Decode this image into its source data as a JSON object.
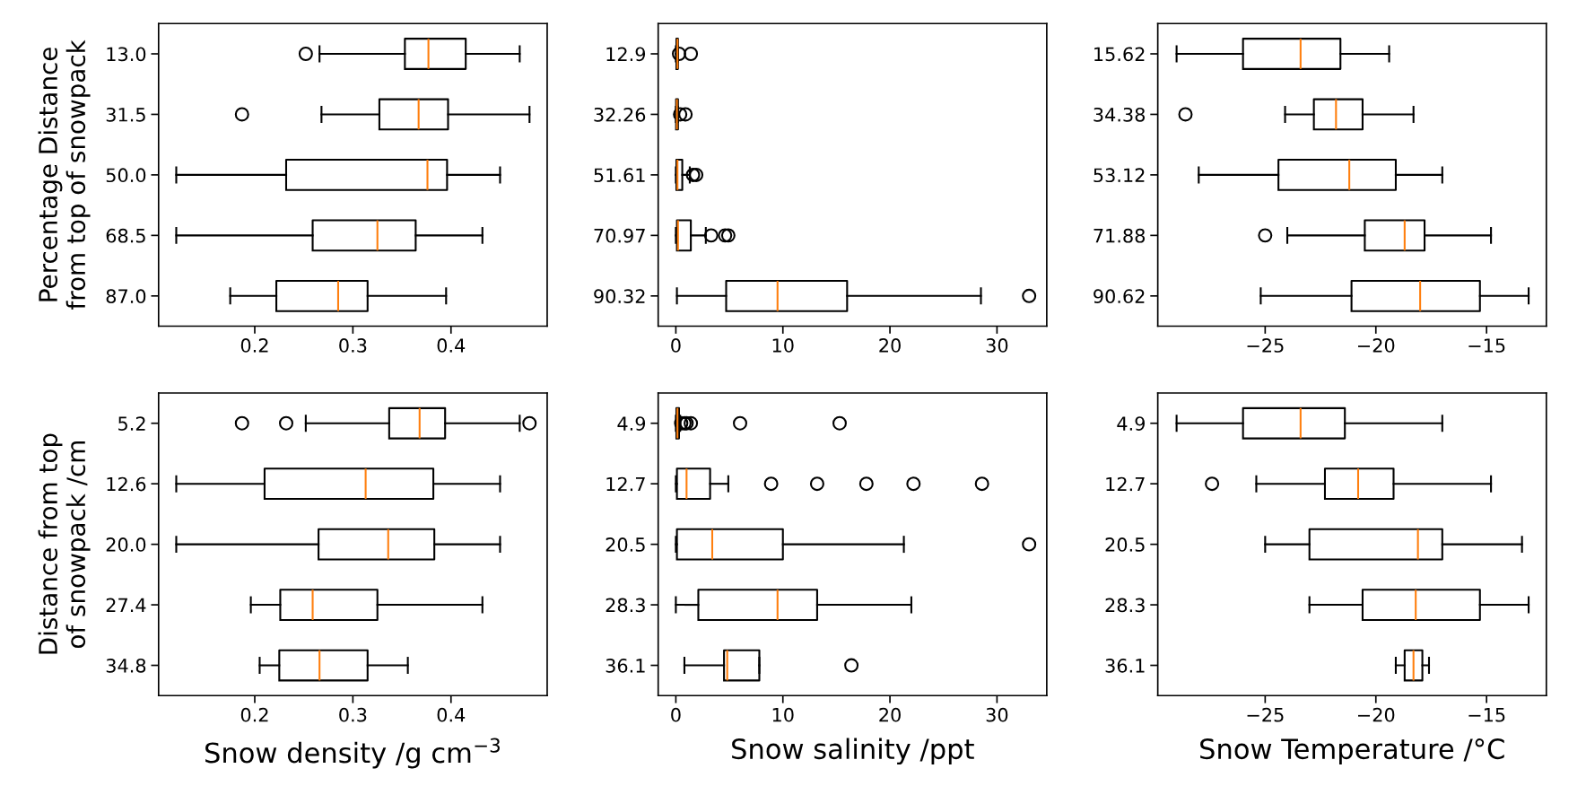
{
  "chart_data": [
    {
      "type": "box",
      "orientation": "horizontal",
      "ylabel": "Percentage Distance\nfrom top of snowpack",
      "categories": [
        "13.0",
        "31.5",
        "50.0",
        "68.5",
        "87.0"
      ],
      "xlim": [
        0.102,
        0.498
      ],
      "xticks": [
        0.2,
        0.3,
        0.4
      ],
      "boxes": [
        {
          "low": 0.266,
          "q1": 0.353,
          "median": 0.377,
          "q3": 0.415,
          "high": 0.47,
          "outliers": [
            0.252
          ]
        },
        {
          "low": 0.268,
          "q1": 0.327,
          "median": 0.367,
          "q3": 0.397,
          "high": 0.48,
          "outliers": [
            0.187
          ]
        },
        {
          "low": 0.12,
          "q1": 0.232,
          "median": 0.376,
          "q3": 0.396,
          "high": 0.45
        },
        {
          "low": 0.12,
          "q1": 0.259,
          "median": 0.325,
          "q3": 0.364,
          "high": 0.432
        },
        {
          "low": 0.175,
          "q1": 0.222,
          "median": 0.285,
          "q3": 0.315,
          "high": 0.395
        }
      ]
    },
    {
      "type": "box",
      "orientation": "horizontal",
      "categories": [
        "12.9",
        "32.26",
        "51.61",
        "70.97",
        "90.32"
      ],
      "xlim": [
        -1.65,
        34.65
      ],
      "xticks": [
        0,
        10,
        20,
        30
      ],
      "boxes": [
        {
          "low": 0.0,
          "q1": 0.05,
          "median": 0.15,
          "q3": 0.2,
          "high": 0.2,
          "outliers": [
            0.3,
            1.4
          ]
        },
        {
          "low": 0.0,
          "q1": 0.02,
          "median": 0.1,
          "q3": 0.2,
          "high": 0.2,
          "outliers": [
            0.4,
            0.9
          ]
        },
        {
          "low": 0.0,
          "q1": 0.05,
          "median": 0.15,
          "q3": 0.6,
          "high": 1.3,
          "outliers": [
            1.6,
            1.9
          ]
        },
        {
          "low": 0.0,
          "q1": 0.1,
          "median": 0.2,
          "q3": 1.4,
          "high": 2.8,
          "outliers": [
            3.3,
            4.6,
            4.9
          ]
        },
        {
          "low": 0.1,
          "q1": 4.7,
          "median": 9.5,
          "q3": 16.0,
          "high": 28.5,
          "outliers": [
            33.0
          ]
        }
      ]
    },
    {
      "type": "box",
      "orientation": "horizontal",
      "categories": [
        "15.62",
        "34.38",
        "53.12",
        "71.88",
        "90.62"
      ],
      "xlim": [
        -29.85,
        -12.3
      ],
      "xticks": [
        {
          "value": -25,
          "label": "−25"
        },
        {
          "value": -20,
          "label": "−20"
        },
        {
          "value": -15,
          "label": "−15"
        }
      ],
      "boxes": [
        {
          "low": -29.0,
          "q1": -26.0,
          "median": -23.4,
          "q3": -21.6,
          "high": -19.4
        },
        {
          "low": -24.1,
          "q1": -22.8,
          "median": -21.8,
          "q3": -20.6,
          "high": -18.3,
          "outliers": [
            -28.6
          ]
        },
        {
          "low": -28.0,
          "q1": -24.4,
          "median": -21.2,
          "q3": -19.1,
          "high": -17.0
        },
        {
          "low": -24.0,
          "q1": -20.5,
          "median": -18.7,
          "q3": -17.8,
          "high": -14.8,
          "outliers": [
            -25.0
          ]
        },
        {
          "low": -25.2,
          "q1": -21.1,
          "median": -18.0,
          "q3": -15.3,
          "high": -13.1
        }
      ]
    },
    {
      "type": "box",
      "orientation": "horizontal",
      "ylabel": "Distance from top\nof snowpack /cm",
      "xlabel": "Snow density /g cm$^{−3}$",
      "categories": [
        "5.2",
        "12.6",
        "20.0",
        "27.4",
        "34.8"
      ],
      "xlim": [
        0.102,
        0.498
      ],
      "xticks": [
        0.2,
        0.3,
        0.4
      ],
      "boxes": [
        {
          "low": 0.252,
          "q1": 0.337,
          "median": 0.368,
          "q3": 0.394,
          "high": 0.47,
          "outliers": [
            0.187,
            0.232,
            0.48
          ]
        },
        {
          "low": 0.12,
          "q1": 0.21,
          "median": 0.313,
          "q3": 0.382,
          "high": 0.45
        },
        {
          "low": 0.12,
          "q1": 0.265,
          "median": 0.336,
          "q3": 0.383,
          "high": 0.45
        },
        {
          "low": 0.196,
          "q1": 0.226,
          "median": 0.259,
          "q3": 0.325,
          "high": 0.432
        },
        {
          "low": 0.205,
          "q1": 0.225,
          "median": 0.266,
          "q3": 0.315,
          "high": 0.356
        }
      ]
    },
    {
      "type": "box",
      "orientation": "horizontal",
      "xlabel": "Snow salinity /ppt",
      "categories": [
        "4.9",
        "12.7",
        "20.5",
        "28.3",
        "36.1"
      ],
      "xlim": [
        -1.65,
        34.65
      ],
      "xticks": [
        0,
        10,
        20,
        30
      ],
      "boxes": [
        {
          "low": 0.0,
          "q1": 0.05,
          "median": 0.15,
          "q3": 0.3,
          "high": 0.4,
          "outliers": [
            0.5,
            0.8,
            1.0,
            1.4,
            6.0,
            15.3
          ]
        },
        {
          "low": 0.0,
          "q1": 0.1,
          "median": 1.0,
          "q3": 3.2,
          "high": 4.9,
          "outliers": [
            8.9,
            13.2,
            17.8,
            22.2,
            28.6
          ]
        },
        {
          "low": 0.0,
          "q1": 0.1,
          "median": 3.4,
          "q3": 10.0,
          "high": 21.3,
          "outliers": [
            33.0
          ]
        },
        {
          "low": 0.0,
          "q1": 2.1,
          "median": 9.5,
          "q3": 13.2,
          "high": 22.0
        },
        {
          "low": 0.8,
          "q1": 4.5,
          "median": 4.8,
          "q3": 7.8,
          "high": 7.8,
          "outliers": [
            16.4
          ]
        }
      ]
    },
    {
      "type": "box",
      "orientation": "horizontal",
      "xlabel": "Snow Temperature /°C",
      "categories": [
        "4.9",
        "12.7",
        "20.5",
        "28.3",
        "36.1"
      ],
      "xlim": [
        -29.85,
        -12.3
      ],
      "xticks": [
        {
          "value": -25,
          "label": "−25"
        },
        {
          "value": -20,
          "label": "−20"
        },
        {
          "value": -15,
          "label": "−15"
        }
      ],
      "boxes": [
        {
          "low": -29.0,
          "q1": -26.0,
          "median": -23.4,
          "q3": -21.4,
          "high": -17.0
        },
        {
          "low": -25.4,
          "q1": -22.3,
          "median": -20.8,
          "q3": -19.2,
          "high": -14.8,
          "outliers": [
            -27.4
          ]
        },
        {
          "low": -25.0,
          "q1": -23.0,
          "median": -18.1,
          "q3": -17.0,
          "high": -13.4
        },
        {
          "low": -23.0,
          "q1": -20.6,
          "median": -18.2,
          "q3": -15.3,
          "high": -13.1
        },
        {
          "low": -19.1,
          "q1": -18.7,
          "median": -18.3,
          "q3": -17.9,
          "high": -17.6
        }
      ]
    }
  ]
}
